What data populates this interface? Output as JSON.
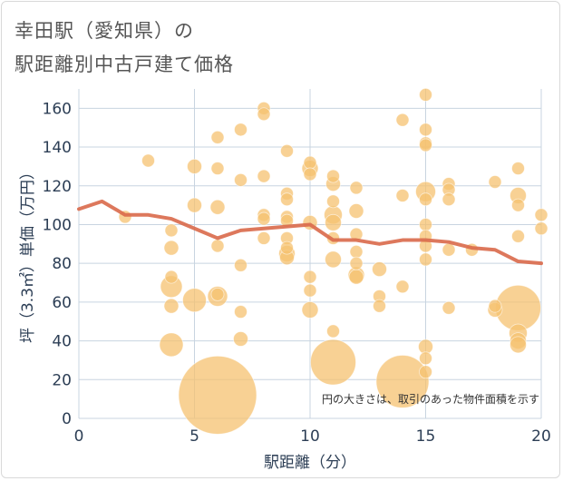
{
  "title_line1": "幸田駅（愛知県）の",
  "title_line2": "駅距離別中古戸建て価格",
  "chart_data": {
    "type": "scatter",
    "xlabel": "駅距離（分）",
    "ylabel": "坪（3.3㎡）単価（万円）",
    "xlim": [
      0,
      20
    ],
    "ylim": [
      0,
      170
    ],
    "xticks": [
      0,
      5,
      10,
      15,
      20
    ],
    "yticks": [
      0,
      20,
      40,
      60,
      80,
      100,
      120,
      140,
      160
    ],
    "annotation": "円の大きさは、取引のあった物件面積を示す",
    "colors": {
      "bubble": "#f5c270",
      "line": "#d9694a",
      "grid": "#c8d4e0"
    },
    "bubbles": [
      {
        "x": 3,
        "y": 133,
        "s": 7
      },
      {
        "x": 4,
        "y": 97,
        "s": 7
      },
      {
        "x": 4,
        "y": 88,
        "s": 8
      },
      {
        "x": 4,
        "y": 73,
        "s": 7
      },
      {
        "x": 4,
        "y": 68,
        "s": 12
      },
      {
        "x": 4,
        "y": 58,
        "s": 8
      },
      {
        "x": 4,
        "y": 38,
        "s": 13
      },
      {
        "x": 2,
        "y": 104,
        "s": 7
      },
      {
        "x": 5,
        "y": 130,
        "s": 8
      },
      {
        "x": 5,
        "y": 110,
        "s": 8
      },
      {
        "x": 5,
        "y": 61,
        "s": 13
      },
      {
        "x": 6,
        "y": 145,
        "s": 7
      },
      {
        "x": 6,
        "y": 129,
        "s": 7
      },
      {
        "x": 6,
        "y": 109,
        "s": 8
      },
      {
        "x": 6,
        "y": 89,
        "s": 7
      },
      {
        "x": 6,
        "y": 64,
        "s": 7
      },
      {
        "x": 6,
        "y": 63,
        "s": 11
      },
      {
        "x": 6,
        "y": 12,
        "s": 43
      },
      {
        "x": 7,
        "y": 149,
        "s": 7
      },
      {
        "x": 7,
        "y": 123,
        "s": 7
      },
      {
        "x": 7,
        "y": 79,
        "s": 7
      },
      {
        "x": 7,
        "y": 55,
        "s": 7
      },
      {
        "x": 7,
        "y": 41,
        "s": 8
      },
      {
        "x": 8,
        "y": 160,
        "s": 7
      },
      {
        "x": 8,
        "y": 157,
        "s": 7
      },
      {
        "x": 8,
        "y": 125,
        "s": 7
      },
      {
        "x": 8,
        "y": 105,
        "s": 7
      },
      {
        "x": 8,
        "y": 103,
        "s": 7
      },
      {
        "x": 8,
        "y": 93,
        "s": 7
      },
      {
        "x": 9,
        "y": 138,
        "s": 7
      },
      {
        "x": 9,
        "y": 116,
        "s": 7
      },
      {
        "x": 9,
        "y": 113,
        "s": 7
      },
      {
        "x": 9,
        "y": 104,
        "s": 7
      },
      {
        "x": 9,
        "y": 102,
        "s": 7
      },
      {
        "x": 9,
        "y": 93,
        "s": 7
      },
      {
        "x": 9,
        "y": 88,
        "s": 7
      },
      {
        "x": 9,
        "y": 85,
        "s": 9
      },
      {
        "x": 9,
        "y": 83,
        "s": 8
      },
      {
        "x": 10,
        "y": 132,
        "s": 7
      },
      {
        "x": 10,
        "y": 129,
        "s": 9
      },
      {
        "x": 10,
        "y": 126,
        "s": 7
      },
      {
        "x": 10,
        "y": 101,
        "s": 8
      },
      {
        "x": 10,
        "y": 73,
        "s": 7
      },
      {
        "x": 10,
        "y": 66,
        "s": 7
      },
      {
        "x": 10,
        "y": 56,
        "s": 9
      },
      {
        "x": 11,
        "y": 125,
        "s": 7
      },
      {
        "x": 11,
        "y": 121,
        "s": 8
      },
      {
        "x": 11,
        "y": 112,
        "s": 7
      },
      {
        "x": 11,
        "y": 105,
        "s": 10
      },
      {
        "x": 11,
        "y": 101,
        "s": 9
      },
      {
        "x": 11,
        "y": 93,
        "s": 7
      },
      {
        "x": 11,
        "y": 82,
        "s": 9
      },
      {
        "x": 11,
        "y": 45,
        "s": 7
      },
      {
        "x": 11,
        "y": 29,
        "s": 25
      },
      {
        "x": 12,
        "y": 119,
        "s": 7
      },
      {
        "x": 12,
        "y": 107,
        "s": 8
      },
      {
        "x": 12,
        "y": 95,
        "s": 7
      },
      {
        "x": 12,
        "y": 86,
        "s": 7
      },
      {
        "x": 12,
        "y": 80,
        "s": 7
      },
      {
        "x": 12,
        "y": 74,
        "s": 9
      },
      {
        "x": 12,
        "y": 73,
        "s": 8
      },
      {
        "x": 13,
        "y": 77,
        "s": 8
      },
      {
        "x": 13,
        "y": 63,
        "s": 7
      },
      {
        "x": 13,
        "y": 58,
        "s": 7
      },
      {
        "x": 14,
        "y": 154,
        "s": 7
      },
      {
        "x": 14,
        "y": 115,
        "s": 7
      },
      {
        "x": 14,
        "y": 68,
        "s": 7
      },
      {
        "x": 14,
        "y": 19,
        "s": 29
      },
      {
        "x": 15,
        "y": 167,
        "s": 7
      },
      {
        "x": 15,
        "y": 149,
        "s": 7
      },
      {
        "x": 15,
        "y": 142,
        "s": 7
      },
      {
        "x": 15,
        "y": 141,
        "s": 7
      },
      {
        "x": 15,
        "y": 117,
        "s": 11
      },
      {
        "x": 15,
        "y": 113,
        "s": 7
      },
      {
        "x": 15,
        "y": 100,
        "s": 7
      },
      {
        "x": 15,
        "y": 94,
        "s": 7
      },
      {
        "x": 15,
        "y": 89,
        "s": 7
      },
      {
        "x": 15,
        "y": 82,
        "s": 7
      },
      {
        "x": 15,
        "y": 37,
        "s": 8
      },
      {
        "x": 15,
        "y": 31,
        "s": 7
      },
      {
        "x": 15,
        "y": 24,
        "s": 7
      },
      {
        "x": 16,
        "y": 121,
        "s": 7
      },
      {
        "x": 16,
        "y": 118,
        "s": 7
      },
      {
        "x": 16,
        "y": 113,
        "s": 7
      },
      {
        "x": 16,
        "y": 87,
        "s": 7
      },
      {
        "x": 16,
        "y": 57,
        "s": 7
      },
      {
        "x": 17,
        "y": 87,
        "s": 7
      },
      {
        "x": 18,
        "y": 122,
        "s": 7
      },
      {
        "x": 18,
        "y": 58,
        "s": 7
      },
      {
        "x": 18,
        "y": 56,
        "s": 8
      },
      {
        "x": 19,
        "y": 129,
        "s": 7
      },
      {
        "x": 19,
        "y": 115,
        "s": 9
      },
      {
        "x": 19,
        "y": 110,
        "s": 7
      },
      {
        "x": 19,
        "y": 94,
        "s": 7
      },
      {
        "x": 19,
        "y": 57,
        "s": 25
      },
      {
        "x": 19,
        "y": 44,
        "s": 10
      },
      {
        "x": 19,
        "y": 40,
        "s": 9
      },
      {
        "x": 19,
        "y": 38,
        "s": 9
      },
      {
        "x": 20,
        "y": 105,
        "s": 7
      },
      {
        "x": 20,
        "y": 98,
        "s": 7
      }
    ],
    "line": {
      "x": [
        0,
        1,
        2,
        3,
        4,
        5,
        6,
        7,
        8,
        9,
        10,
        11,
        12,
        13,
        14,
        15,
        16,
        17,
        18,
        19,
        20
      ],
      "y": [
        108,
        112,
        105,
        105,
        103,
        98,
        93,
        97,
        98,
        99,
        100,
        92,
        92,
        90,
        92,
        92,
        91,
        88,
        87,
        81,
        80
      ]
    }
  }
}
